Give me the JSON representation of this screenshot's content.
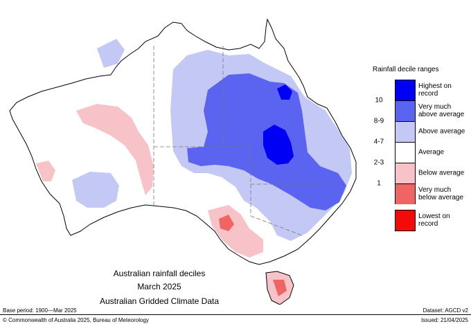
{
  "legend": {
    "title": "Rainfall decile ranges",
    "items": [
      {
        "range": "",
        "label": "Highest on record",
        "color": "#0000f5"
      },
      {
        "range": "10",
        "label": "Very much above average",
        "color": "#5a64f0"
      },
      {
        "range": "8-9",
        "label": "Above average",
        "color": "#c3c8f5"
      },
      {
        "range": "4-7",
        "label": "Average",
        "color": "#ffffff"
      },
      {
        "range": "2-3",
        "label": "Below average",
        "color": "#f8c3c8"
      },
      {
        "range": "1",
        "label": "Very much below average",
        "color": "#f06464"
      },
      {
        "range": "",
        "label": "Lowest on record",
        "color": "#f50a0a"
      }
    ]
  },
  "caption": {
    "line1": "Australian rainfall deciles",
    "line2": "March 2025",
    "line3": "Australian Gridded Climate Data"
  },
  "footer": {
    "base_period": "Base period: 1900—Mar 2025",
    "dataset": "Dataset: AGCD v2",
    "copyright": "© Commonwealth of Australia 2025, Bureau of Meteorology",
    "issued": "Issued: 21/04/2025"
  }
}
